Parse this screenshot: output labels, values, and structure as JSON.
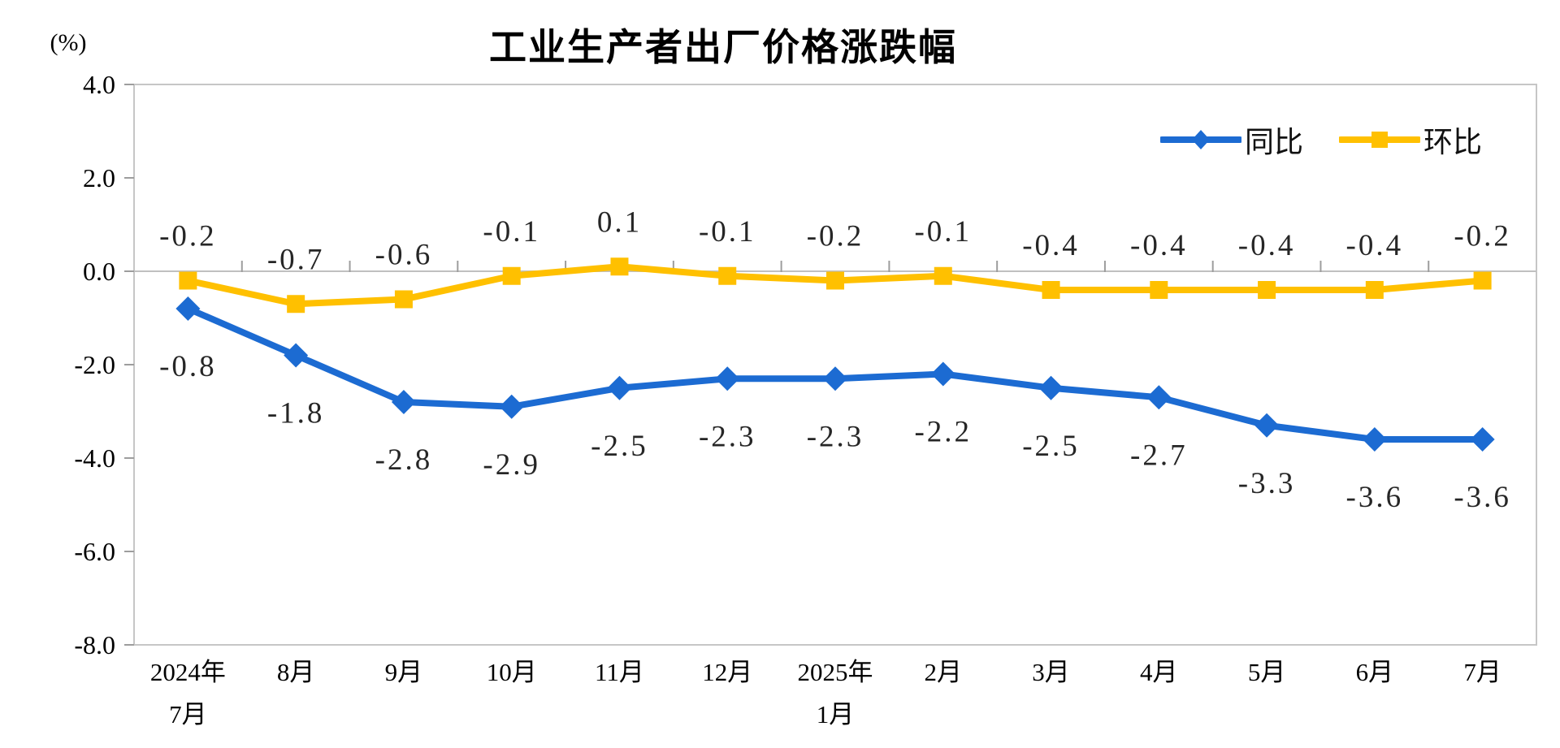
{
  "chart_data": {
    "type": "line",
    "title": "工业生产者出厂价格涨跌幅",
    "unit_label": "(%)",
    "categories": [
      [
        "2024年",
        "7月"
      ],
      [
        "8月"
      ],
      [
        "9月"
      ],
      [
        "10月"
      ],
      [
        "11月"
      ],
      [
        "12月"
      ],
      [
        "2025年",
        "1月"
      ],
      [
        "2月"
      ],
      [
        "3月"
      ],
      [
        "4月"
      ],
      [
        "5月"
      ],
      [
        "6月"
      ],
      [
        "7月"
      ]
    ],
    "y_ticks": [
      4.0,
      2.0,
      0.0,
      -2.0,
      -4.0,
      -6.0,
      -8.0
    ],
    "y_tick_labels": [
      "4.0",
      "2.0",
      "0.0",
      "-2.0",
      "-4.0",
      "-6.0",
      "-8.0"
    ],
    "ylim": [
      -8.0,
      4.0
    ],
    "grid": false,
    "legend_position": "top-right",
    "axis_color": "#c6c6c6",
    "zero_line_color": "#c0c0c0",
    "tick_color": "#9d9d9d",
    "label_color": "#262626",
    "series": [
      {
        "name": "同比",
        "color": "#1c6bd2",
        "marker": "diamond",
        "values": [
          -0.8,
          -1.8,
          -2.8,
          -2.9,
          -2.5,
          -2.3,
          -2.3,
          -2.2,
          -2.5,
          -2.7,
          -3.3,
          -3.6,
          -3.6
        ],
        "label_texts": [
          "-0.8",
          "-1.8",
          "-2.8",
          "-2.9",
          "-2.5",
          "-2.3",
          "-2.3",
          "-2.2",
          "-2.5",
          "-2.7",
          "-3.3",
          "-3.6",
          "-3.6"
        ],
        "label_side": "below"
      },
      {
        "name": "环比",
        "color": "#ffc000",
        "marker": "square",
        "values": [
          -0.2,
          -0.7,
          -0.6,
          -0.1,
          0.1,
          -0.1,
          -0.2,
          -0.1,
          -0.4,
          -0.4,
          -0.4,
          -0.4,
          -0.2
        ],
        "label_texts": [
          "-0.2",
          "-0.7",
          "-0.6",
          "-0.1",
          "0.1",
          "-0.1",
          "-0.2",
          "-0.1",
          "-0.4",
          "-0.4",
          "-0.4",
          "-0.4",
          "-0.2"
        ],
        "label_side": "above"
      }
    ]
  }
}
